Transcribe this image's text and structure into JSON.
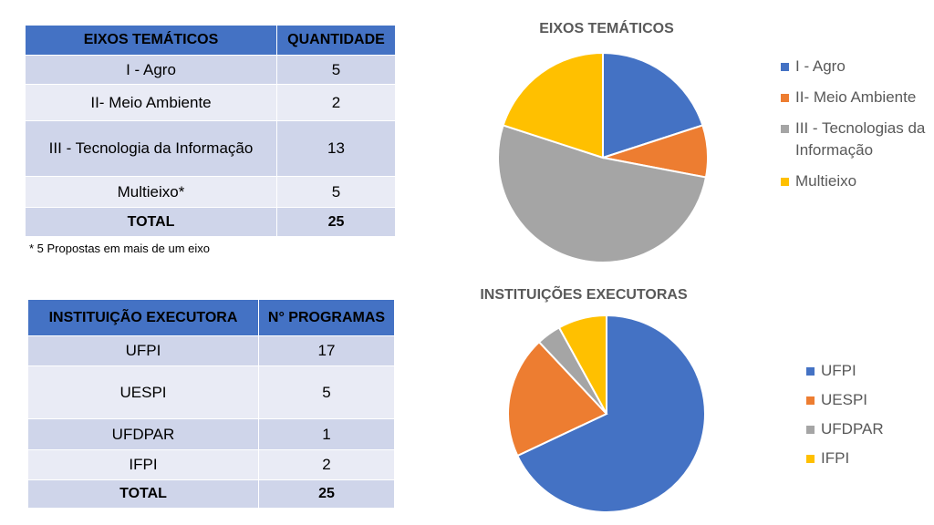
{
  "table1": {
    "headers": [
      "EIXOS TEMÁTICOS",
      "QUANTIDADE"
    ],
    "rows": [
      [
        "I - Agro",
        "5"
      ],
      [
        "II- Meio Ambiente",
        "2"
      ],
      [
        "III - Tecnologia da Informação",
        "13"
      ],
      [
        "Multieixo*",
        "5"
      ]
    ],
    "total": [
      "TOTAL",
      "25"
    ],
    "footnote": "* 5 Propostas em mais de um eixo"
  },
  "table2": {
    "headers": [
      "INSTITUIÇÃO EXECUTORA",
      "N° PROGRAMAS"
    ],
    "rows": [
      [
        "UFPI",
        "17"
      ],
      [
        "UESPI",
        "5"
      ],
      [
        "UFDPAR",
        "1"
      ],
      [
        "IFPI",
        "2"
      ]
    ],
    "total": [
      "TOTAL",
      "25"
    ]
  },
  "colors": {
    "header_bg": "#4472c4",
    "row_odd": "#cfd5ea",
    "row_even": "#e9ebf5",
    "blue": "#4472c4",
    "orange": "#ed7d31",
    "gray": "#a5a5a5",
    "yellow": "#ffc000",
    "title_text": "#595959"
  },
  "chart_data": [
    {
      "type": "pie",
      "title": "EIXOS TEMÁTICOS",
      "legend_position": "right",
      "categories": [
        "I - Agro",
        "II- Meio Ambiente",
        "III - Tecnologias da Informação",
        "Multieixo"
      ],
      "values": [
        5,
        2,
        13,
        5
      ],
      "colors": [
        "#4472c4",
        "#ed7d31",
        "#a5a5a5",
        "#ffc000"
      ]
    },
    {
      "type": "pie",
      "title": "INSTITUIÇÕES EXECUTORAS",
      "legend_position": "right",
      "categories": [
        "UFPI",
        "UESPI",
        "UFDPAR",
        "IFPI"
      ],
      "values": [
        17,
        5,
        1,
        2
      ],
      "colors": [
        "#4472c4",
        "#ed7d31",
        "#a5a5a5",
        "#ffc000"
      ]
    }
  ]
}
